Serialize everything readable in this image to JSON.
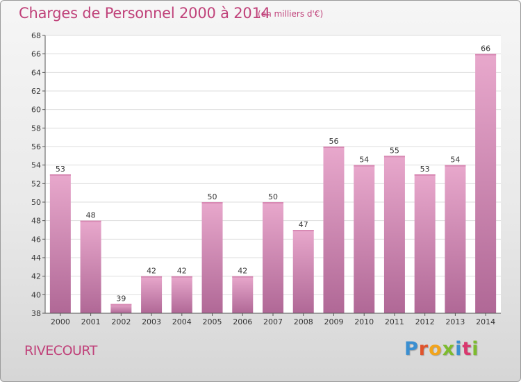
{
  "chart_data": {
    "type": "bar",
    "title": "Charges de Personnel 2000 à 2014",
    "subtitle": "(en milliers d'€)",
    "categories": [
      "2000",
      "2001",
      "2002",
      "2003",
      "2004",
      "2005",
      "2006",
      "2007",
      "2008",
      "2009",
      "2010",
      "2011",
      "2012",
      "2013",
      "2014"
    ],
    "values": [
      53,
      48,
      39,
      42,
      42,
      50,
      42,
      50,
      47,
      56,
      54,
      55,
      53,
      54,
      66
    ],
    "ylim": [
      38,
      68
    ],
    "yticks": [
      38,
      40,
      42,
      44,
      46,
      48,
      50,
      52,
      54,
      56,
      58,
      60,
      62,
      64,
      66,
      68
    ],
    "grid": true,
    "bar_color_top": "#e8a8cc",
    "bar_color_bottom": "#b06896"
  },
  "footer": {
    "commune": "RIVECOURT",
    "logo_text": "Proxiti"
  },
  "colors": {
    "title": "#c0427a",
    "grid": "#dddddd",
    "axis": "#555555"
  }
}
